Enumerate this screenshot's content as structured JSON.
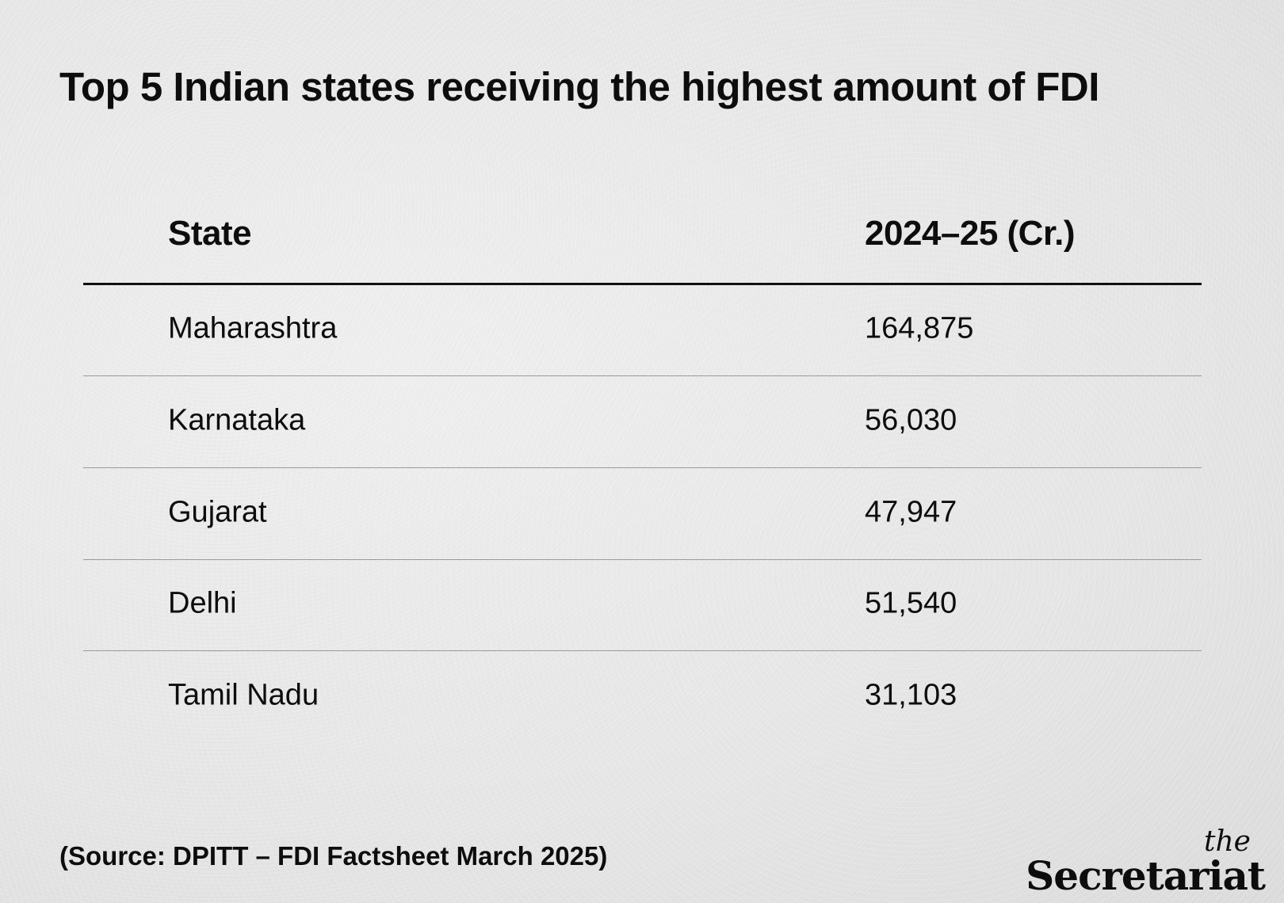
{
  "title": "Top 5 Indian states receiving the highest amount of FDI",
  "table": {
    "headers": [
      "State",
      "2024–25 (Cr.)"
    ],
    "rows": [
      [
        "Maharashtra",
        "164,875"
      ],
      [
        "Karnataka",
        "56,030"
      ],
      [
        "Gujarat",
        "47,947"
      ],
      [
        "Delhi",
        "51,540"
      ],
      [
        "Tamil Nadu",
        "31,103"
      ]
    ]
  },
  "source": "(Source: DPITT – FDI Factsheet March 2025)",
  "logo": {
    "the": "the",
    "name": "Secretariat"
  }
}
